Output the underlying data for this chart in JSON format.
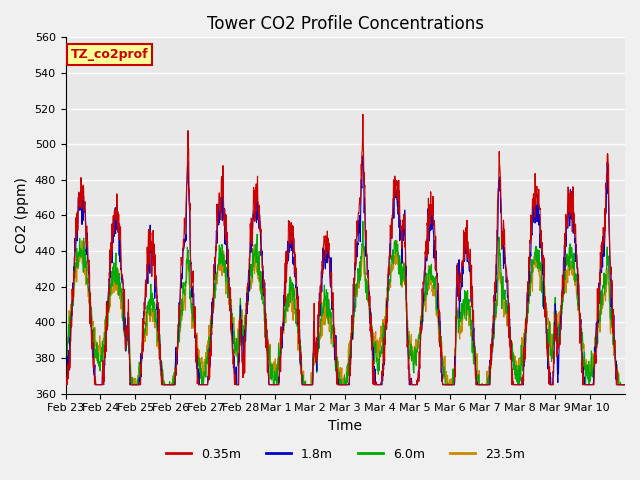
{
  "title": "Tower CO2 Profile Concentrations",
  "xlabel": "Time",
  "ylabel": "CO2 (ppm)",
  "ylim": [
    360,
    560
  ],
  "yticks": [
    360,
    380,
    400,
    420,
    440,
    460,
    480,
    500,
    520,
    540,
    560
  ],
  "xtick_labels": [
    "Feb 23",
    "Feb 24",
    "Feb 25",
    "Feb 26",
    "Feb 27",
    "Feb 28",
    "Mar 1",
    "Mar 2",
    "Mar 3",
    "Mar 4",
    "Mar 5",
    "Mar 6",
    "Mar 7",
    "Mar 8",
    "Mar 9",
    "Mar 10"
  ],
  "series": [
    {
      "label": "0.35m",
      "color": "#cc0000"
    },
    {
      "label": "1.8m",
      "color": "#0000cc"
    },
    {
      "label": "6.0m",
      "color": "#00aa00"
    },
    {
      "label": "23.5m",
      "color": "#cc8800"
    }
  ],
  "annotation_text": "TZ_co2prof",
  "annotation_facecolor": "#ffff99",
  "annotation_edgecolor": "#cc0000",
  "annotation_textcolor": "#cc0000",
  "background_color": "#e8e8e8",
  "grid_color": "#ffffff",
  "n_points": 1700,
  "n_days": 16,
  "base_co2": 400,
  "diurnal_amplitude_035": 60,
  "diurnal_amplitude_18": 55,
  "diurnal_amplitude_60": 30,
  "diurnal_amplitude_235": 25
}
